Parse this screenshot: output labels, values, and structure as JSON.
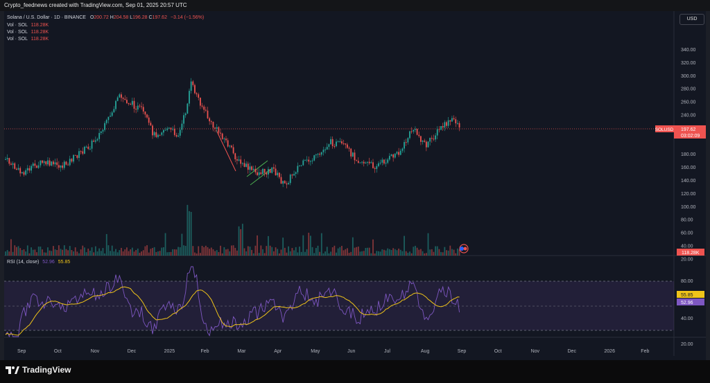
{
  "watermark": "Crypto_feednews created with TradingView.com, Sep 01, 2025 20:57 UTC",
  "currency_button": "USD",
  "legend": {
    "symbol_line": "Solana / U.S. Dollar · 1D · BINANCE",
    "o_label": "O",
    "o_value": "200.72",
    "h_label": "H",
    "h_value": "204.58",
    "l_label": "L",
    "l_value": "196.28",
    "c_label": "C",
    "c_value": "197.62",
    "change": "−3.14 (−1.56%)",
    "vol_rows": [
      {
        "label": "Vol · SOL",
        "value": "118.28K"
      },
      {
        "label": "Vol · SOL",
        "value": "118.28K"
      },
      {
        "label": "Vol · SOL",
        "value": "118.28K"
      }
    ]
  },
  "rsi_legend": {
    "label": "RSI (14, close)",
    "value1": "52.96",
    "value2": "55.85"
  },
  "price_axis": [
    "340.00",
    "320.00",
    "300.00",
    "280.00",
    "260.00",
    "240.00",
    "220.00",
    "200.00",
    "180.00",
    "160.00",
    "140.00",
    "120.00",
    "100.00",
    "80.00",
    "60.00",
    "40.00",
    "20.00"
  ],
  "rsi_axis": [
    "80.00",
    "60.00",
    "40.00",
    "20.00"
  ],
  "time_axis": [
    "Sep",
    "Oct",
    "Nov",
    "Dec",
    "2025",
    "Feb",
    "Mar",
    "Apr",
    "May",
    "Jun",
    "Jul",
    "Aug",
    "Sep",
    "Oct",
    "Nov",
    "Dec",
    "2026",
    "Feb"
  ],
  "price_tag": {
    "symbol": "SOLUSD",
    "price": "197.62",
    "countdown": "03:02:09"
  },
  "volume_tag": "118.28K",
  "rsi_tags": {
    "upper": "55.85",
    "lower": "52.96"
  },
  "brand": "TradingView",
  "colors": {
    "up": "#26a69a",
    "down": "#ef5350",
    "rsi": "#7e57c2",
    "rsi_ma": "#f0c419",
    "price_line": "#ef5350",
    "background": "#131722"
  }
}
